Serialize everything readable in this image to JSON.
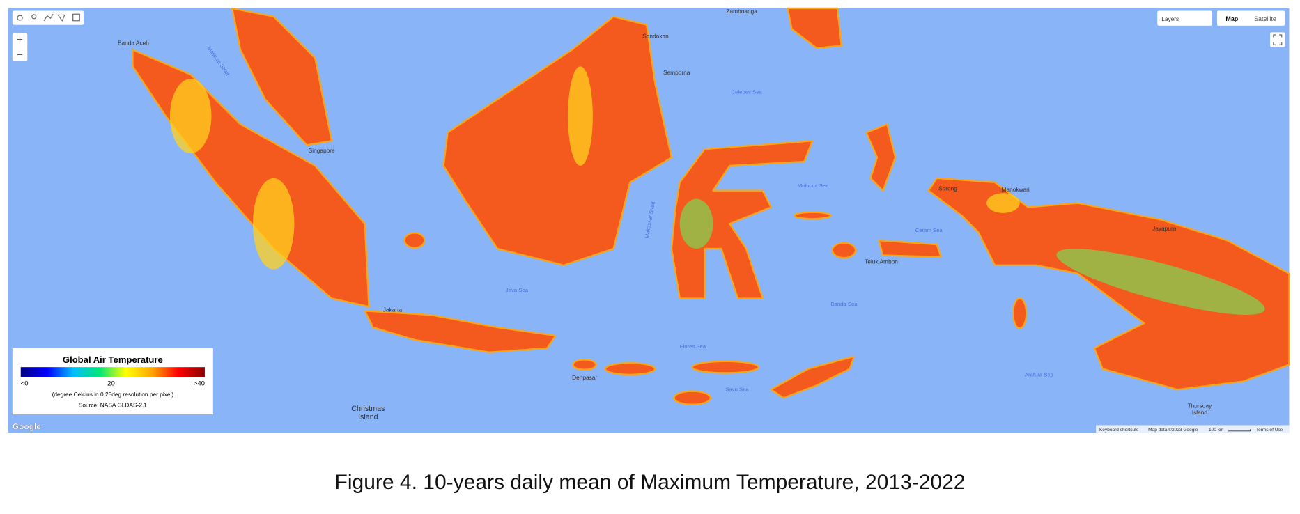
{
  "controls": {
    "zoom_in": "+",
    "zoom_out": "−",
    "layers": "Layers",
    "map_types": [
      "Map",
      "Satellite"
    ]
  },
  "legend": {
    "title": "Global Air Temperature",
    "palette": [
      "#000080",
      "#0000ff",
      "#00bfff",
      "#00e676",
      "#ffff00",
      "#ffa500",
      "#ff0000",
      "#8b0000"
    ],
    "min_label": "<0",
    "mid_label": "20",
    "max_label": ">40",
    "note": "(degree Celcius in 0.25deg resolution per pixel)",
    "source": "Source: NASA GLDAS-2.1"
  },
  "map_labels": {
    "places": [
      "Banda Aceh",
      "Singapore",
      "Jakarta",
      "Denpasar",
      "Christmas",
      "Island",
      "Sandakan",
      "Zamboanga",
      "Semporna",
      "Teluk Ambon",
      "Sorong",
      "Manokwari",
      "Jayapura",
      "Thursday",
      "Island"
    ],
    "waters": [
      "Malacca Strait",
      "Java Sea",
      "Celebes Sea",
      "Makassar Strait",
      "Molucca Sea",
      "Flores Sea",
      "Savu Sea",
      "Banda Sea",
      "Arafura Sea",
      "Ceram Sea"
    ]
  },
  "attribution": {
    "logo": "Google",
    "items": [
      "Keyboard shortcuts",
      "Map data ©2023 Google",
      "100 km",
      "Terms of Use"
    ]
  },
  "caption": "Figure 4. 10-years daily mean of Maximum Temperature, 2013-2022"
}
